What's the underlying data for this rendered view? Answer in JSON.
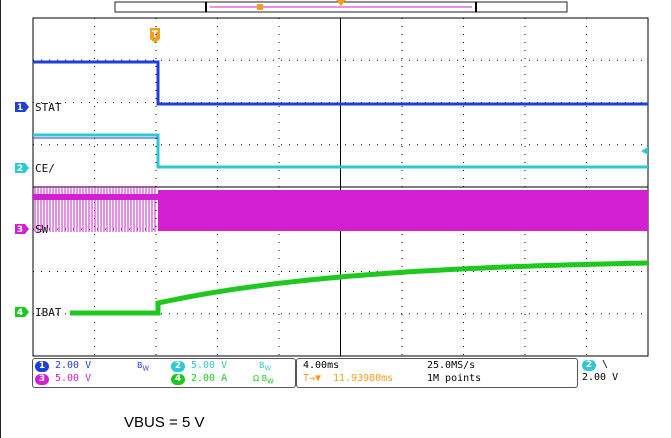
{
  "channels": [
    {
      "num": "1",
      "label": "STAT",
      "color": "#1f3fd6"
    },
    {
      "num": "2",
      "label": "CE/",
      "color": "#2ec8d0"
    },
    {
      "num": "3",
      "label": "SW",
      "color": "#d21fcf"
    },
    {
      "num": "4",
      "label": "IBAT",
      "color": "#1fc81f"
    }
  ],
  "scale": {
    "ch1": "2.00 V",
    "ch2": "5.00 V",
    "ch3": "5.00 V",
    "ch4": "2.00 A"
  },
  "timebase": {
    "horizontal": "4.00ms",
    "sample_rate": "25.0MS/s",
    "trigger_position": "11.93980ms",
    "record_length": "1M points"
  },
  "trigger": {
    "source_num": "2",
    "slope_symbol": "\\",
    "level": "2.00 V",
    "marker": "T"
  },
  "caption": "VBUS = 5 V",
  "colors": {
    "grid": "#000000",
    "trigger_marker": "#f0a020",
    "ch1": "#1f3fd6",
    "ch2": "#2ec8d0",
    "ch3": "#d21fcf",
    "ch4": "#1fc81f"
  }
}
